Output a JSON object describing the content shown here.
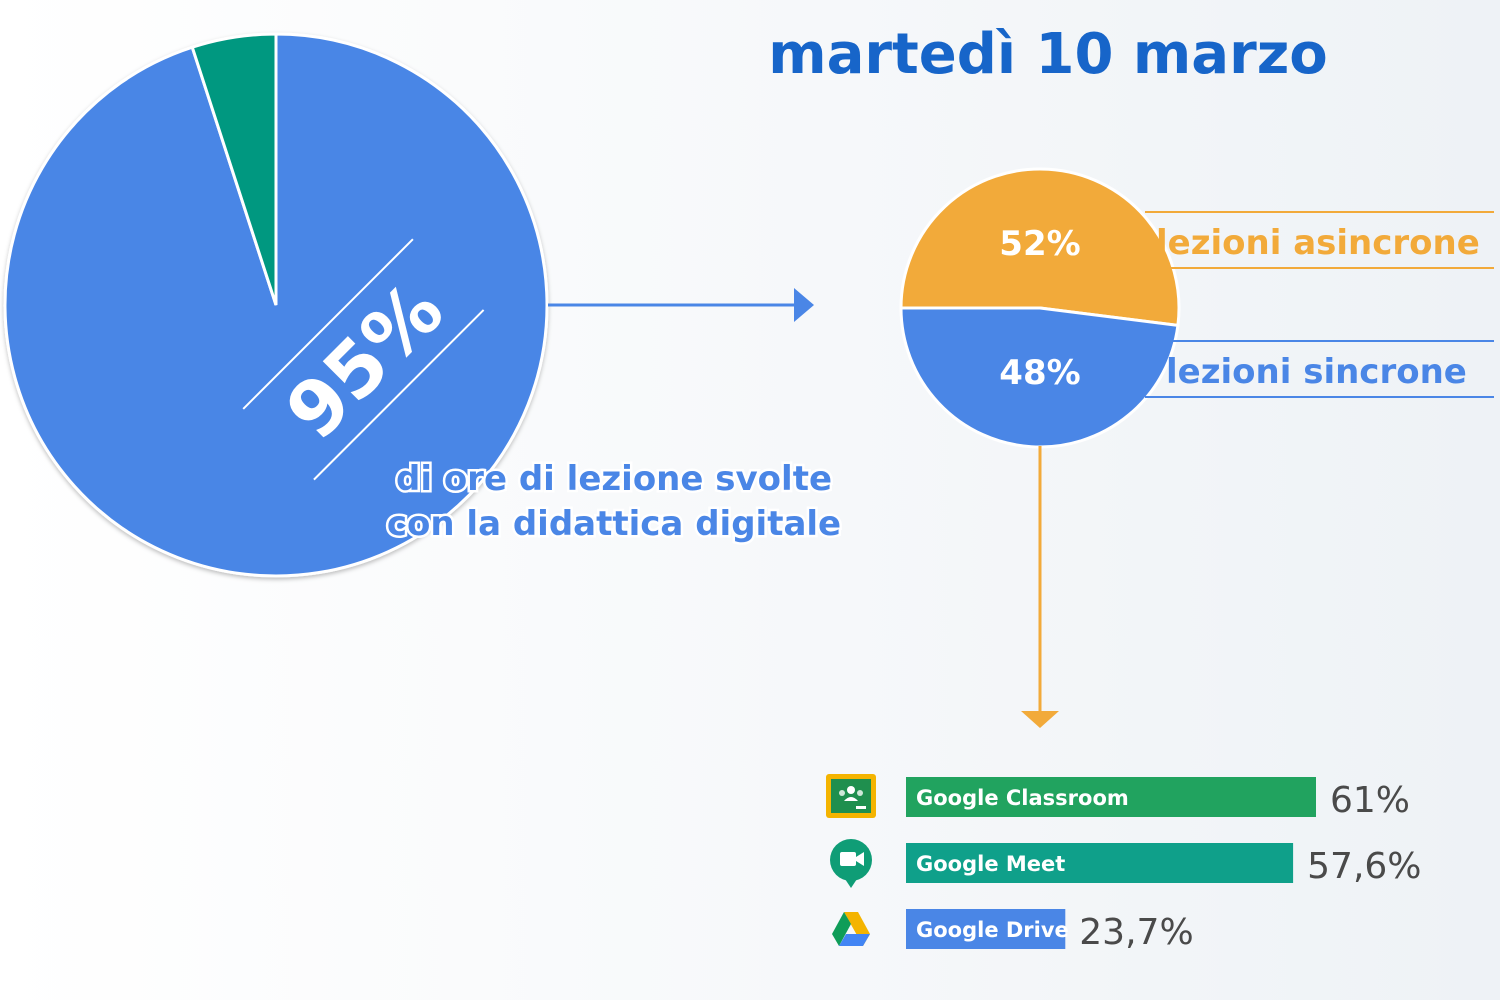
{
  "header": {
    "date": "martedì 10 marzo"
  },
  "colors": {
    "blue": "#4a86e6",
    "teal": "#069880",
    "orange": "#f2aa3a",
    "title_blue": "#1765c9",
    "bar_classroom": "#21a35f",
    "bar_meet": "#0fa08a",
    "bar_drive": "#4a86e6",
    "value_text": "#4a4a4a"
  },
  "chart_data": [
    {
      "type": "pie",
      "slices": [
        {
          "value": 95,
          "label": "95%",
          "color": "#4a86e6"
        },
        {
          "value": 5,
          "color": "#069880"
        }
      ],
      "annotation": [
        "di ore di lezione svolte",
        "con la didattica digitale"
      ]
    },
    {
      "type": "pie",
      "slices": [
        {
          "value": 52,
          "label": "52%",
          "category": "lezioni asincrone",
          "color": "#f2aa3a"
        },
        {
          "value": 48,
          "label": "48%",
          "category": "lezioni sincrone",
          "color": "#4a86e6"
        }
      ]
    },
    {
      "type": "bar",
      "orientation": "horizontal",
      "categories": [
        "Google Classroom",
        "Google Meet",
        "Google Drive"
      ],
      "values": [
        61,
        57.6,
        23.7
      ],
      "value_labels": [
        "61%",
        "57,6%",
        "23,7%"
      ],
      "icons": [
        "google-classroom-icon",
        "google-meet-icon",
        "google-drive-icon"
      ],
      "colors": [
        "#21a35f",
        "#0fa08a",
        "#4a86e6"
      ]
    }
  ]
}
